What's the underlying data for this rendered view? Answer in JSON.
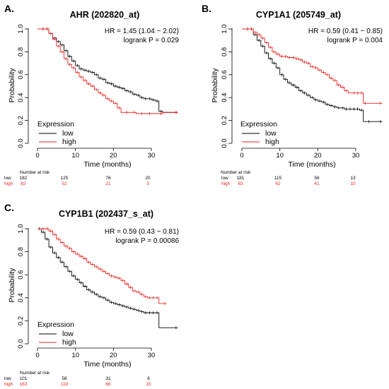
{
  "panels": [
    {
      "label": "A.",
      "title": "AHR (202820_at)",
      "hr": "HR = 1.45 (1.04 − 2.02)",
      "logrank": "logrank P = 0.029",
      "ylabel": "Probability",
      "xlabel": "Time (months)",
      "legend_title": "Expression",
      "legend_items": [
        "low",
        "high"
      ],
      "yticks": [
        "0.0",
        "0.2",
        "0.4",
        "0.6",
        "0.8",
        "1.0"
      ],
      "xticks": [
        "0",
        "10",
        "20",
        "30"
      ],
      "risk_title": "Number at risk",
      "risk_rows": [
        {
          "name": "low",
          "values": [
            "182",
            "125",
            "76",
            "20"
          ]
        },
        {
          "name": "high",
          "values": [
            "82",
            "52",
            "21",
            "3"
          ]
        }
      ]
    },
    {
      "label": "B.",
      "title": "CYP1A1 (205749_at)",
      "hr": "HR = 0.59 (0.41 − 0.85)",
      "logrank": "logrank P = 0.004",
      "ylabel": "Probability",
      "xlabel": "Time (months)",
      "legend_title": "Expression",
      "legend_items": [
        "low",
        "high"
      ],
      "yticks": [
        "0.0",
        "0.2",
        "0.4",
        "0.6",
        "0.8",
        "1.0"
      ],
      "xticks": [
        "0",
        "10",
        "20",
        "30"
      ],
      "risk_title": "Number at risk",
      "risk_rows": [
        {
          "name": "low",
          "values": [
            "181",
            "115",
            "56",
            "13"
          ]
        },
        {
          "name": "high",
          "values": [
            "83",
            "62",
            "41",
            "10"
          ]
        }
      ]
    },
    {
      "label": "C.",
      "title": "CYP1B1 (202437_s_at)",
      "hr": "HR = 0.59 (0.43 − 0.81)",
      "logrank": "logrank P = 0.00086",
      "ylabel": "Probability",
      "xlabel": "Time (months)",
      "legend_title": "Expression",
      "legend_items": [
        "low",
        "high"
      ],
      "yticks": [
        "0.0",
        "0.2",
        "0.4",
        "0.6",
        "0.8",
        "1.0"
      ],
      "xticks": [
        "0",
        "10",
        "20",
        "30"
      ],
      "risk_title": "Number at risk",
      "risk_rows": [
        {
          "name": "low",
          "values": [
            "101",
            "58",
            "31",
            "8"
          ]
        },
        {
          "name": "high",
          "values": [
            "163",
            "119",
            "66",
            "15"
          ]
        }
      ]
    }
  ],
  "colors": {
    "low": "#000000",
    "high": "#e8231f",
    "axis": "#000000"
  },
  "chart_data": [
    {
      "type": "line",
      "title": "AHR (202820_at)",
      "xlabel": "Time (months)",
      "ylabel": "Probability",
      "xlim": [
        0,
        38
      ],
      "ylim": [
        0,
        1
      ],
      "series": [
        {
          "name": "low",
          "x": [
            0,
            2,
            3,
            4,
            5,
            6,
            7,
            8,
            9,
            10,
            11,
            12,
            13,
            14,
            15,
            16,
            17,
            18,
            19,
            20,
            21,
            22,
            23,
            24,
            25,
            26,
            27,
            28,
            29,
            30,
            31,
            32,
            33,
            37
          ],
          "y": [
            1.0,
            1.0,
            0.96,
            0.92,
            0.89,
            0.86,
            0.81,
            0.76,
            0.72,
            0.68,
            0.65,
            0.64,
            0.63,
            0.62,
            0.6,
            0.57,
            0.56,
            0.53,
            0.52,
            0.5,
            0.49,
            0.48,
            0.46,
            0.45,
            0.43,
            0.42,
            0.4,
            0.39,
            0.39,
            0.38,
            0.37,
            0.28,
            0.27,
            0.27
          ]
        },
        {
          "name": "high",
          "x": [
            0,
            2,
            3,
            4,
            5,
            6,
            7,
            8,
            9,
            10,
            11,
            12,
            13,
            14,
            15,
            16,
            17,
            18,
            19,
            20,
            21,
            22,
            24,
            26,
            28,
            30,
            33,
            37
          ],
          "y": [
            1.0,
            1.0,
            0.96,
            0.91,
            0.85,
            0.8,
            0.74,
            0.69,
            0.66,
            0.62,
            0.58,
            0.55,
            0.52,
            0.5,
            0.47,
            0.44,
            0.42,
            0.39,
            0.37,
            0.35,
            0.31,
            0.27,
            0.27,
            0.26,
            0.26,
            0.26,
            0.27,
            0.27
          ]
        }
      ]
    },
    {
      "type": "line",
      "title": "CYP1A1 (205749_at)",
      "xlabel": "Time (months)",
      "ylabel": "Probability",
      "xlim": [
        0,
        38
      ],
      "ylim": [
        0,
        1
      ],
      "series": [
        {
          "name": "low",
          "x": [
            0,
            2,
            3,
            4,
            5,
            6,
            7,
            8,
            9,
            10,
            11,
            12,
            13,
            14,
            15,
            16,
            17,
            18,
            19,
            20,
            21,
            22,
            23,
            24,
            25,
            26,
            27,
            28,
            29,
            30,
            31,
            32,
            34,
            37
          ],
          "y": [
            1.0,
            1.0,
            0.95,
            0.9,
            0.85,
            0.79,
            0.74,
            0.7,
            0.66,
            0.6,
            0.56,
            0.53,
            0.51,
            0.49,
            0.46,
            0.44,
            0.42,
            0.4,
            0.38,
            0.37,
            0.36,
            0.34,
            0.33,
            0.32,
            0.31,
            0.31,
            0.3,
            0.3,
            0.3,
            0.3,
            0.29,
            0.19,
            0.19,
            0.19
          ]
        },
        {
          "name": "high",
          "x": [
            0,
            2,
            3,
            4,
            5,
            6,
            7,
            8,
            9,
            10,
            11,
            12,
            13,
            14,
            15,
            16,
            17,
            18,
            19,
            20,
            21,
            22,
            23,
            24,
            25,
            26,
            27,
            28,
            30,
            31,
            32,
            33,
            37
          ],
          "y": [
            1.0,
            1.0,
            0.97,
            0.95,
            0.92,
            0.88,
            0.84,
            0.8,
            0.78,
            0.76,
            0.76,
            0.75,
            0.75,
            0.74,
            0.73,
            0.71,
            0.7,
            0.67,
            0.66,
            0.64,
            0.62,
            0.6,
            0.57,
            0.55,
            0.51,
            0.49,
            0.46,
            0.44,
            0.44,
            0.44,
            0.35,
            0.35,
            0.35
          ]
        }
      ]
    },
    {
      "type": "line",
      "title": "CYP1B1 (202437_s_at)",
      "xlabel": "Time (months)",
      "ylabel": "Probability",
      "xlim": [
        0,
        38
      ],
      "ylim": [
        0,
        1
      ],
      "series": [
        {
          "name": "low",
          "x": [
            0,
            1,
            2,
            3,
            4,
            5,
            6,
            7,
            8,
            9,
            10,
            11,
            12,
            13,
            14,
            15,
            16,
            17,
            18,
            19,
            20,
            21,
            22,
            23,
            24,
            25,
            26,
            27,
            28,
            29,
            30,
            31,
            32,
            37
          ],
          "y": [
            1.0,
            0.97,
            0.91,
            0.84,
            0.79,
            0.75,
            0.71,
            0.67,
            0.63,
            0.59,
            0.56,
            0.53,
            0.5,
            0.47,
            0.45,
            0.43,
            0.41,
            0.4,
            0.38,
            0.36,
            0.35,
            0.34,
            0.33,
            0.32,
            0.31,
            0.3,
            0.29,
            0.28,
            0.27,
            0.27,
            0.27,
            0.27,
            0.14,
            0.14
          ]
        },
        {
          "name": "high",
          "x": [
            0,
            2,
            3,
            4,
            5,
            6,
            7,
            8,
            9,
            10,
            11,
            12,
            13,
            14,
            15,
            16,
            17,
            18,
            19,
            20,
            21,
            22,
            23,
            24,
            25,
            26,
            27,
            28,
            29,
            30,
            31,
            32,
            34
          ],
          "y": [
            1.0,
            1.0,
            0.98,
            0.95,
            0.91,
            0.88,
            0.85,
            0.83,
            0.8,
            0.78,
            0.76,
            0.74,
            0.71,
            0.69,
            0.67,
            0.65,
            0.63,
            0.61,
            0.59,
            0.58,
            0.57,
            0.55,
            0.52,
            0.49,
            0.46,
            0.45,
            0.43,
            0.41,
            0.4,
            0.4,
            0.4,
            0.35,
            0.35
          ]
        }
      ]
    }
  ]
}
